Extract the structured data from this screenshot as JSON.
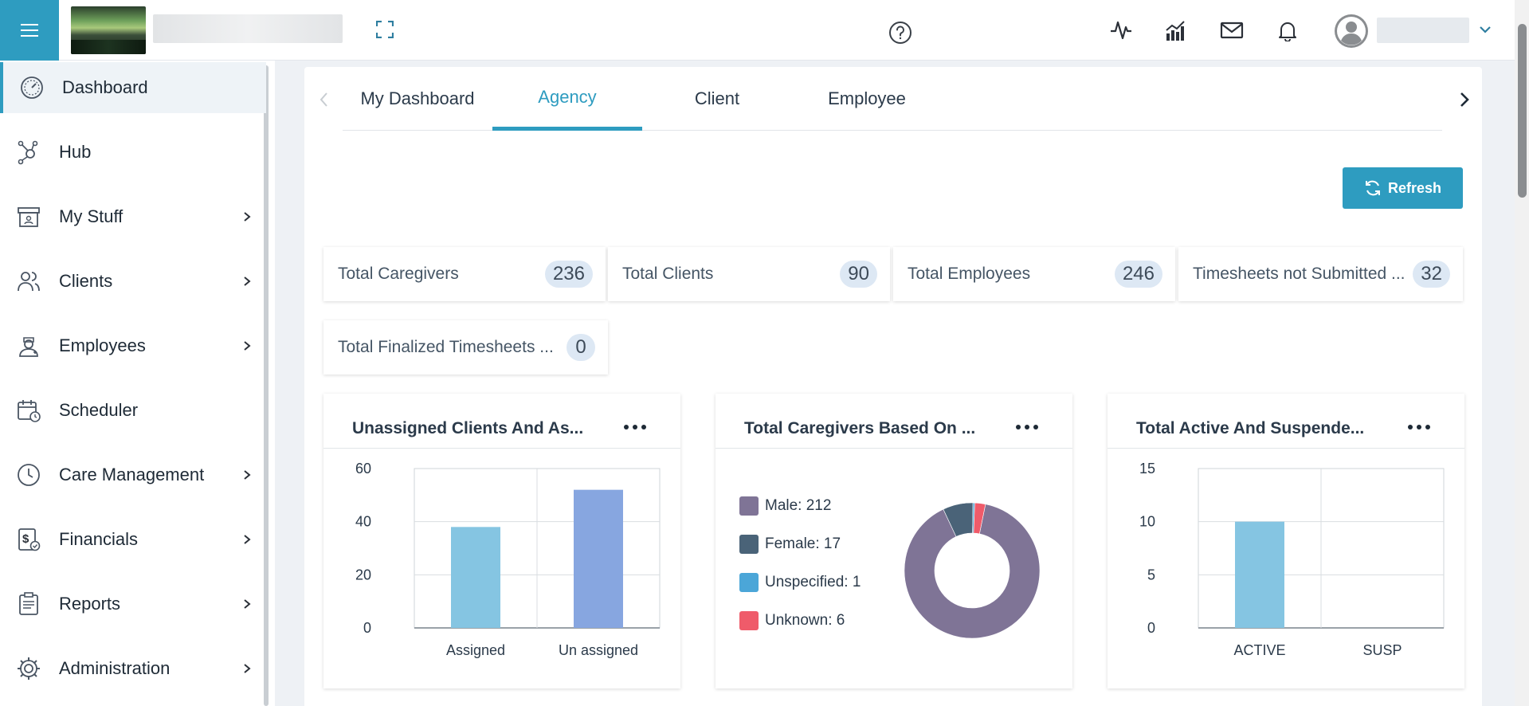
{
  "header": {
    "menu_icon": "hamburger-icon",
    "icons": [
      "expand-icon",
      "help-icon",
      "activity-icon",
      "analytics-icon",
      "mail-icon",
      "bell-icon",
      "avatar-icon",
      "chevron-down-icon"
    ]
  },
  "sidebar": {
    "items": [
      {
        "label": "Dashboard",
        "icon": "gauge-icon",
        "has_submenu": false,
        "active": true
      },
      {
        "label": "Hub",
        "icon": "hub-icon",
        "has_submenu": false
      },
      {
        "label": "My Stuff",
        "icon": "archive-icon",
        "has_submenu": true
      },
      {
        "label": "Clients",
        "icon": "users-icon",
        "has_submenu": true
      },
      {
        "label": "Employees",
        "icon": "nurse-icon",
        "has_submenu": true
      },
      {
        "label": "Scheduler",
        "icon": "calendar-icon",
        "has_submenu": false
      },
      {
        "label": "Care Management",
        "icon": "clock-icon",
        "has_submenu": true
      },
      {
        "label": "Financials",
        "icon": "dollar-doc-icon",
        "has_submenu": true
      },
      {
        "label": "Reports",
        "icon": "clipboard-icon",
        "has_submenu": true
      },
      {
        "label": "Administration",
        "icon": "gear-icon",
        "has_submenu": true
      }
    ]
  },
  "tabs": [
    {
      "label": "My Dashboard",
      "active": false
    },
    {
      "label": "Agency",
      "active": true
    },
    {
      "label": "Client",
      "active": false
    },
    {
      "label": "Employee",
      "active": false
    }
  ],
  "refresh_label": "Refresh",
  "stats": [
    {
      "label": "Total Caregivers",
      "value": "236"
    },
    {
      "label": "Total Clients",
      "value": "90"
    },
    {
      "label": "Total Employees",
      "value": "246"
    },
    {
      "label": "Timesheets not Submitted ...",
      "value": "32"
    },
    {
      "label": "Total Finalized Timesheets ...",
      "value": "0"
    }
  ],
  "colors": {
    "accent": "#2e9cc0",
    "bar_assigned": "#85c5e2",
    "bar_unassigned": "#87a6e0",
    "male": "#7f7496",
    "female": "#4a6378",
    "unspecified": "#4ba6d8",
    "unknown": "#ef5b6a"
  },
  "chart_data": [
    {
      "type": "bar",
      "title": "Unassigned Clients And As...",
      "categories": [
        "Assigned",
        "Un assigned"
      ],
      "values": [
        38,
        52
      ],
      "ylim": [
        0,
        60
      ],
      "yticks": [
        "60",
        "40",
        "20",
        "0"
      ],
      "grid": true,
      "legend": "none"
    },
    {
      "type": "pie",
      "title": "Total Caregivers Based On ...",
      "donut": true,
      "legend": "left",
      "slices": [
        {
          "label": "Male: 212",
          "name": "Male",
          "value": 212
        },
        {
          "label": "Female: 17",
          "name": "Female",
          "value": 17
        },
        {
          "label": "Unspecified: 1",
          "name": "Unspecified",
          "value": 1
        },
        {
          "label": "Unknown: 6",
          "name": "Unknown",
          "value": 6
        }
      ]
    },
    {
      "type": "bar",
      "title": "Total Active And Suspende...",
      "categories": [
        "ACTIVE",
        "SUSP"
      ],
      "values": [
        10,
        0
      ],
      "ylim": [
        0,
        15
      ],
      "yticks": [
        "15",
        "10",
        "5",
        "0"
      ],
      "grid": true,
      "legend": "none"
    }
  ]
}
